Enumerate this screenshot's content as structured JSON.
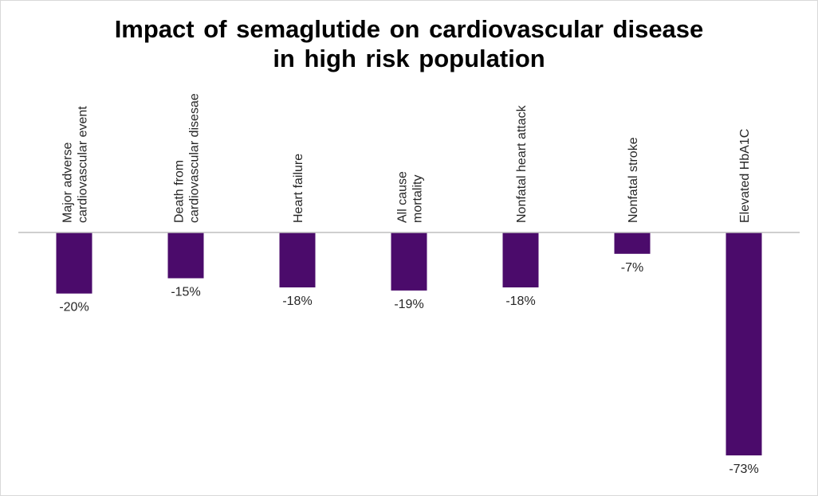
{
  "chart_data": {
    "type": "bar",
    "title": [
      "Impact of semaglutide  on cardiovascular  disease",
      "in high risk population"
    ],
    "xlabel": "",
    "ylabel": "",
    "categories": [
      [
        "Major adverse",
        "cardiovascular event"
      ],
      [
        "Death from",
        "cardiovascular disesae"
      ],
      [
        "Heart failure"
      ],
      [
        "All cause",
        "mortality"
      ],
      [
        "Nonfatal heart attack"
      ],
      [
        "Nonfatal stroke"
      ],
      [
        "Elevated HbA1C"
      ]
    ],
    "values": [
      -20,
      -15,
      -18,
      -19,
      -18,
      -7,
      -73
    ],
    "data_labels": [
      "-20%",
      "-15%",
      "-18%",
      "-19%",
      "-18%",
      "-7%",
      "-73%"
    ],
    "ylim": [
      -73,
      0
    ],
    "bar_color": "#4B0B6B",
    "axis_color": "#bfbfbf",
    "grid": false,
    "legend": "none"
  }
}
